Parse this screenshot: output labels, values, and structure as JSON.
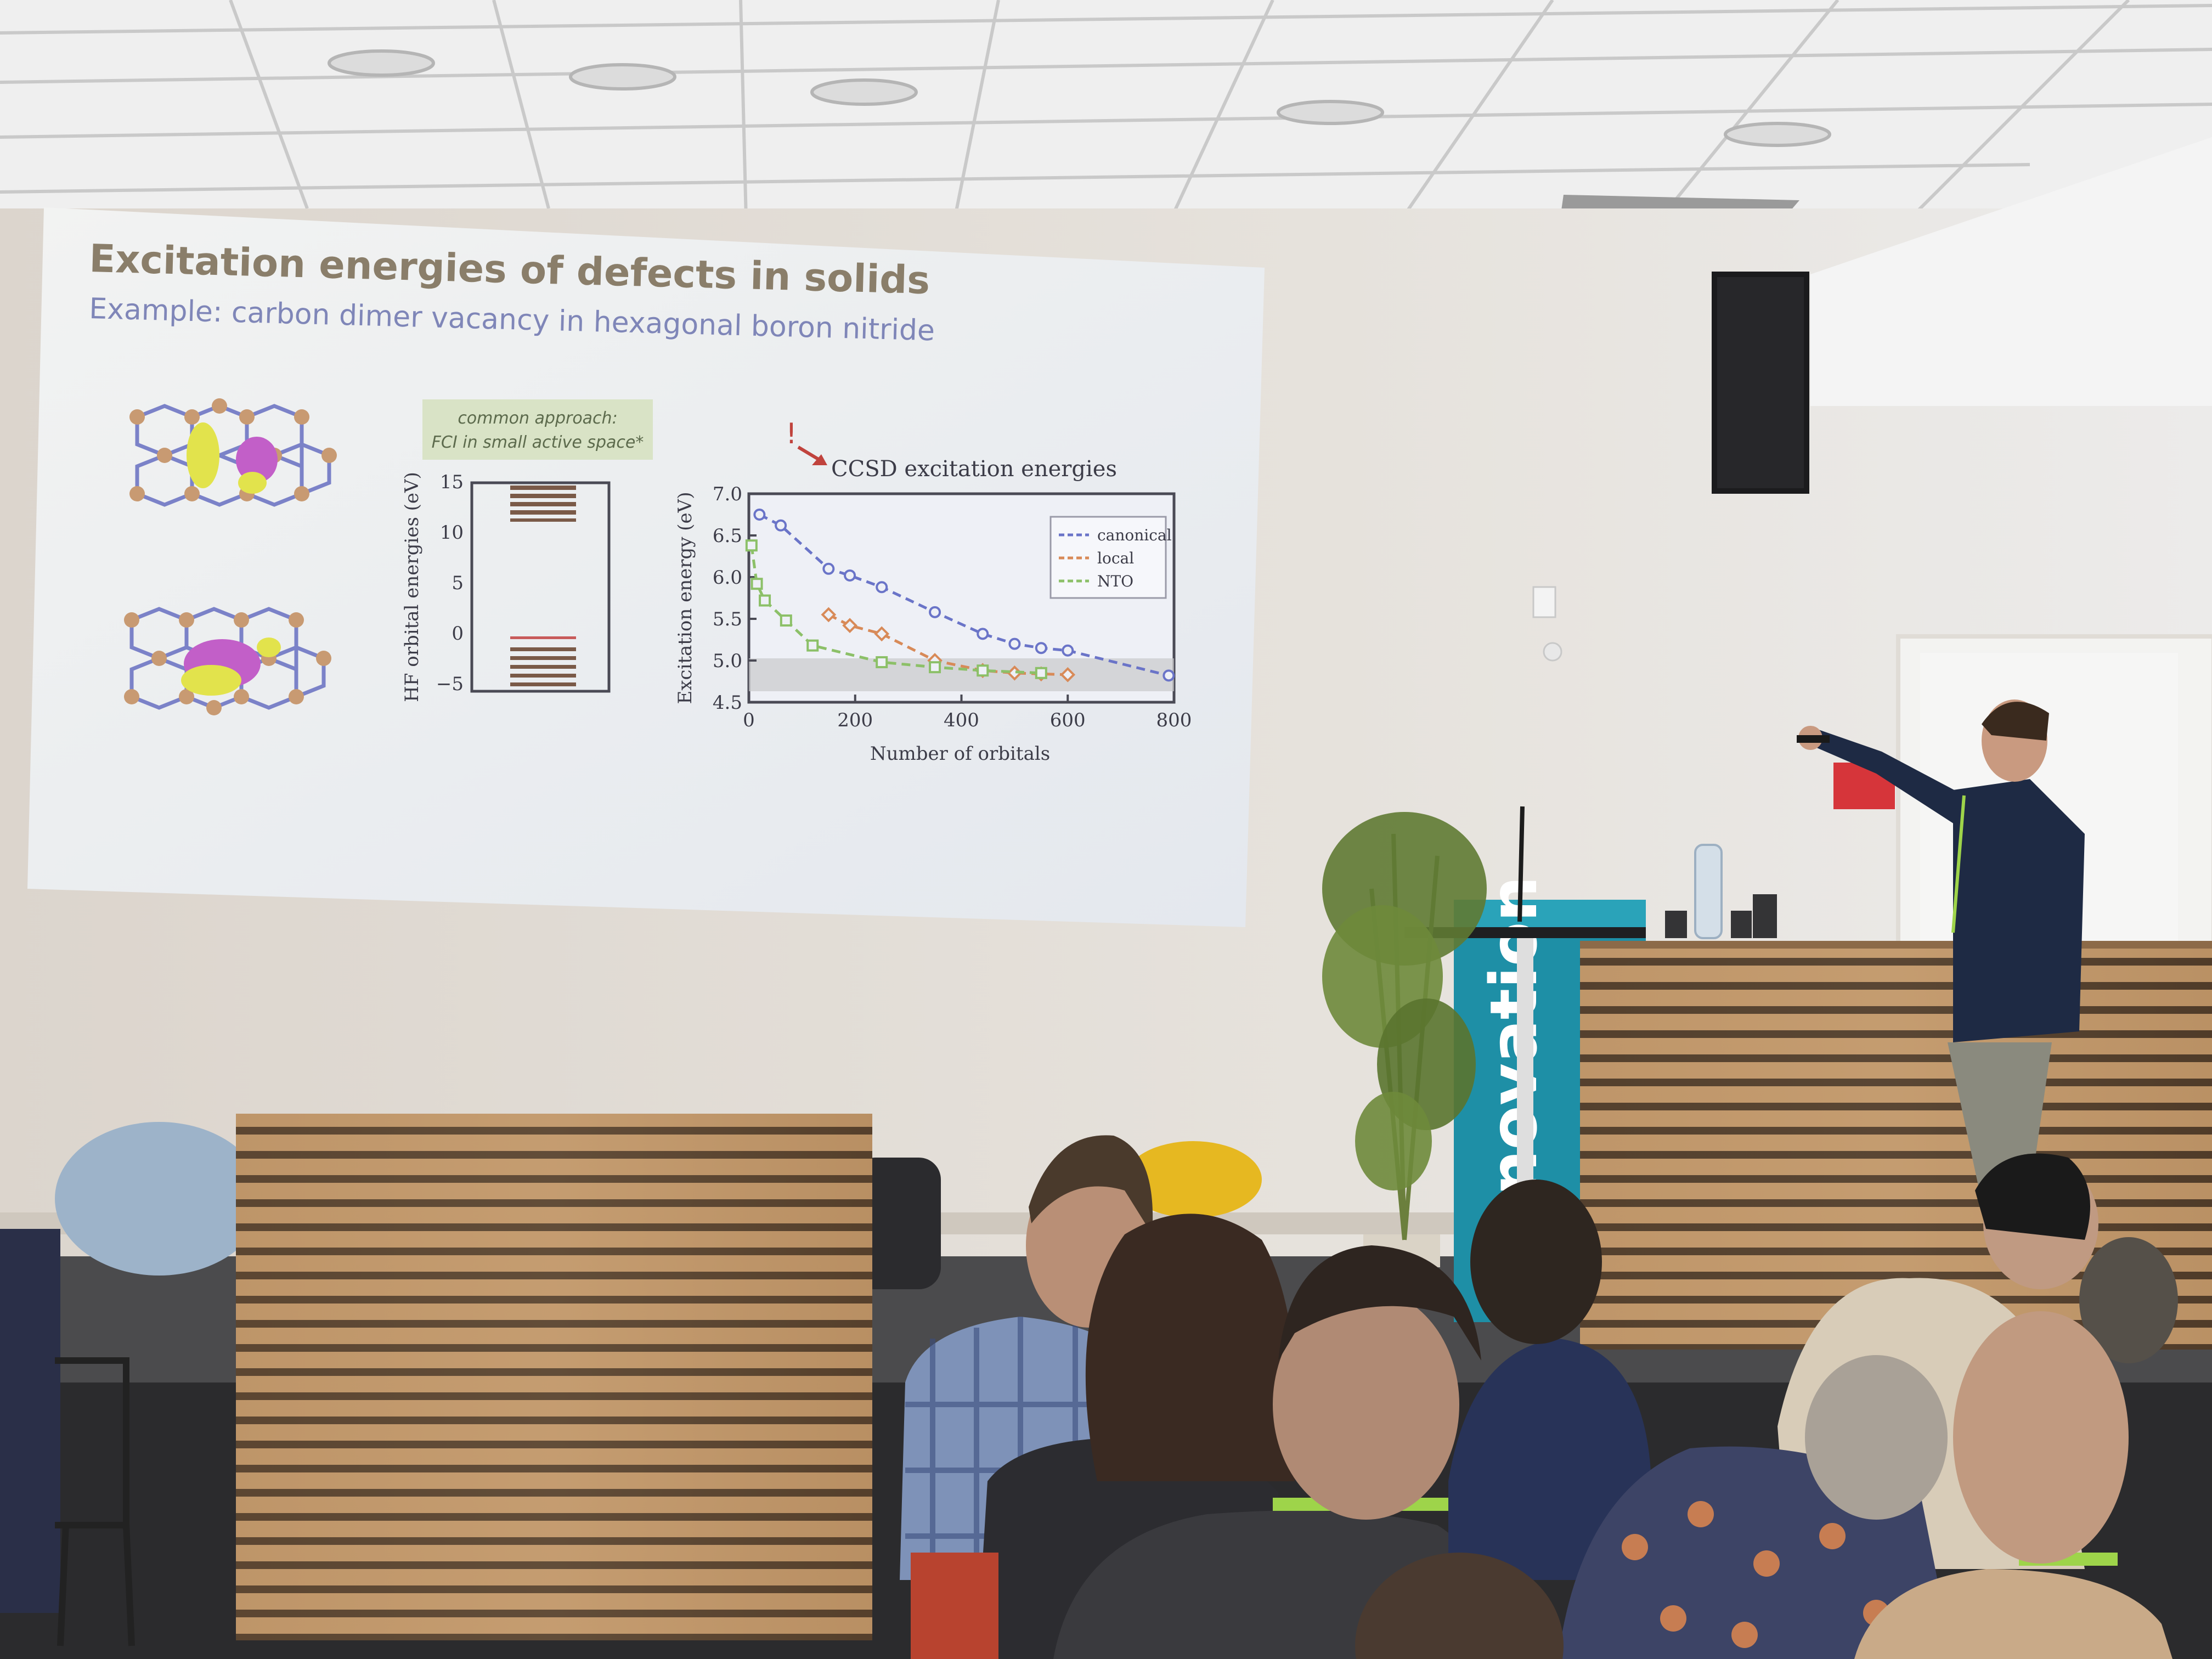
{
  "slide": {
    "title": "Excitation energies of defects in solids",
    "subtitle": "Example: carbon dimer vacancy in hexagonal boron nitride",
    "note_line1": "common approach:",
    "note_line2": "FCI in small active space*",
    "orbital_axis_label": "HF orbital energies (eV)",
    "orbital_ticks": [
      "15",
      "10",
      "5",
      "0",
      "−5"
    ],
    "exclamation": "!",
    "ccsd_label": "CCSD excitation energies"
  },
  "chart_data": {
    "type": "line",
    "xlabel": "Number of orbitals",
    "ylabel": "Excitation energy (eV)",
    "xlim": [
      0,
      800
    ],
    "ylim": [
      4.5,
      7.0
    ],
    "x_ticks": [
      "0",
      "200",
      "400",
      "600",
      "800"
    ],
    "y_ticks": [
      "7.0",
      "6.5",
      "6.0",
      "5.5",
      "5.0",
      "4.5"
    ],
    "legend_position": "top-right",
    "series": [
      {
        "name": "canonical",
        "color": "#6a74c8",
        "marker": "circle",
        "x": [
          20,
          60,
          150,
          190,
          250,
          350,
          440,
          500,
          550,
          600,
          790
        ],
        "y": [
          6.75,
          6.62,
          6.1,
          6.02,
          5.88,
          5.58,
          5.32,
          5.2,
          5.15,
          5.12,
          4.82
        ]
      },
      {
        "name": "local",
        "color": "#d88a58",
        "marker": "diamond",
        "x": [
          150,
          190,
          250,
          350,
          440,
          500,
          550,
          600
        ],
        "y": [
          5.55,
          5.42,
          5.32,
          5.0,
          4.88,
          4.85,
          4.84,
          4.83
        ]
      },
      {
        "name": "NTO",
        "color": "#8cc068",
        "marker": "square",
        "x": [
          5,
          15,
          30,
          70,
          120,
          250,
          350,
          440,
          550
        ],
        "y": [
          6.38,
          5.92,
          5.72,
          5.48,
          5.18,
          4.98,
          4.92,
          4.88,
          4.85
        ]
      }
    ]
  },
  "booth": {
    "banner_text": "novation"
  }
}
